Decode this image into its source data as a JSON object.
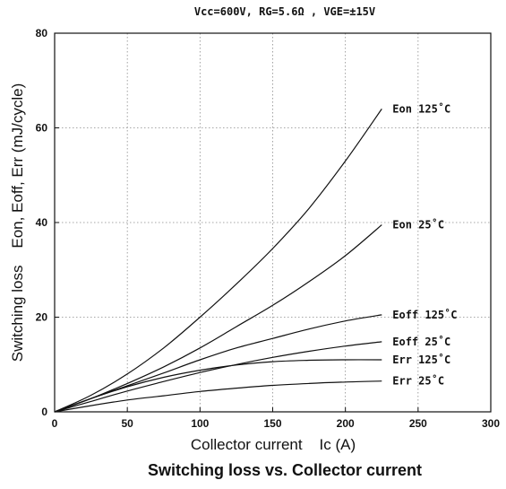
{
  "conditions": "Vcc=600V, RG=5.6Ω , VGE=±15V",
  "caption": "Switching loss vs. Collector current",
  "chart_data": {
    "type": "line",
    "title": "",
    "xlabel": "Collector current    Ic (A)",
    "ylabel": "Switching loss    Eon, Eoff, Err (mJ/cycle)",
    "xlim": [
      0,
      300
    ],
    "ylim": [
      0,
      80
    ],
    "x_ticks": [
      0,
      50,
      100,
      150,
      200,
      250,
      300
    ],
    "y_ticks": [
      0,
      20,
      40,
      60,
      80
    ],
    "grid": true,
    "series": [
      {
        "name": "Eon 125˚C",
        "x": [
          0,
          25,
          50,
          75,
          100,
          125,
          150,
          175,
          200,
          225
        ],
        "y": [
          0,
          3.5,
          8,
          13.5,
          20,
          27,
          34.5,
          43,
          53,
          64
        ]
      },
      {
        "name": "Eon 25˚C",
        "x": [
          0,
          25,
          50,
          75,
          100,
          125,
          150,
          175,
          200,
          225
        ],
        "y": [
          0,
          2.8,
          6,
          9.5,
          13.5,
          18,
          22.5,
          27.5,
          33,
          39.5
        ]
      },
      {
        "name": "Eoff 125˚C",
        "x": [
          0,
          25,
          50,
          75,
          100,
          125,
          150,
          175,
          200,
          225
        ],
        "y": [
          0,
          2.8,
          5.5,
          8.2,
          11,
          13.5,
          15.5,
          17.5,
          19.2,
          20.5
        ]
      },
      {
        "name": "Eoff 25˚C",
        "x": [
          0,
          25,
          50,
          75,
          100,
          125,
          150,
          175,
          200,
          225
        ],
        "y": [
          0,
          2.2,
          4.4,
          6.4,
          8.3,
          10,
          11.5,
          12.8,
          13.9,
          14.8
        ]
      },
      {
        "name": "Err 125˚C",
        "x": [
          0,
          25,
          50,
          75,
          100,
          125,
          150,
          175,
          200,
          225
        ],
        "y": [
          0,
          2.8,
          5.3,
          7.3,
          8.8,
          9.9,
          10.6,
          10.9,
          11,
          11
        ]
      },
      {
        "name": "Err 25˚C",
        "x": [
          0,
          25,
          50,
          75,
          100,
          125,
          150,
          175,
          200,
          225
        ],
        "y": [
          0,
          1.3,
          2.5,
          3.4,
          4.3,
          5,
          5.6,
          6,
          6.3,
          6.5
        ]
      }
    ]
  }
}
